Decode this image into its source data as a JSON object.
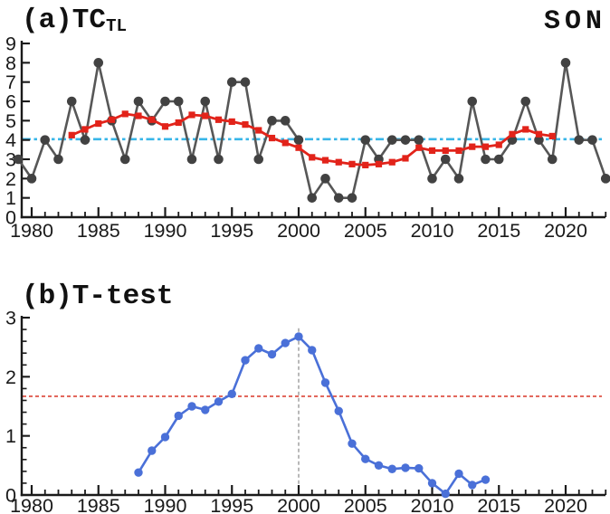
{
  "figure": {
    "panel_a": {
      "title_prefix": "(a)TC",
      "title_subscript": "TL",
      "season_label": "SON"
    },
    "panel_b": {
      "title": "(b)T-test"
    }
  },
  "chart_data": [
    {
      "panel": "a",
      "type": "line",
      "title": "(a)TC_TL (tropical cyclone count, SON)",
      "corner_label": "SON",
      "xlim": [
        1979,
        2023.7
      ],
      "ylim": [
        0,
        9
      ],
      "grid": false,
      "legend": "none",
      "x_tick_labels": [
        "1980",
        "1985",
        "1990",
        "1995",
        "2000",
        "2005",
        "2010",
        "2015",
        "2020"
      ],
      "x_minor_ticks": {
        "start": 1980,
        "end": 2023,
        "step": 1
      },
      "y_tick_labels": [
        "0",
        "1",
        "2",
        "3",
        "4",
        "5",
        "6",
        "7",
        "8",
        "9"
      ],
      "series": [
        {
          "name": "annual-tc-count",
          "color": "#424242",
          "line_color": "#575757",
          "marker": "circle",
          "marker_size": 5.3,
          "line_width": 2.6,
          "x_start": 1979,
          "values": [
            3,
            2,
            4,
            3,
            6,
            4,
            8,
            5,
            3,
            6,
            5,
            6,
            6,
            3,
            6,
            3,
            7,
            7,
            3,
            5,
            5,
            4,
            1,
            2,
            1,
            1,
            4,
            3,
            4,
            4,
            4,
            2,
            3,
            2,
            6,
            3,
            3,
            4,
            6,
            4,
            3,
            8,
            4,
            4,
            2
          ]
        },
        {
          "name": "smoothed-running-mean",
          "color": "#e2231a",
          "line_color": "#e2231a",
          "marker": "square",
          "marker_size": 3.6,
          "line_width": 2.8,
          "x_start": 1983,
          "values": [
            4.25,
            4.55,
            4.85,
            5.05,
            5.35,
            5.25,
            5.05,
            4.7,
            4.9,
            5.3,
            5.25,
            5.05,
            4.95,
            4.8,
            4.5,
            4.1,
            3.85,
            3.6,
            3.1,
            2.95,
            2.85,
            2.75,
            2.7,
            2.75,
            2.85,
            3.05,
            3.6,
            3.45,
            3.45,
            3.45,
            3.65,
            3.65,
            3.75,
            4.3,
            4.55,
            4.3,
            4.2
          ]
        }
      ],
      "reference_lines": [
        {
          "name": "climatological-mean",
          "axis": "y",
          "value": 4.04,
          "color": "#38b6e8",
          "style": "dash-dot",
          "width": 2.6
        }
      ]
    },
    {
      "panel": "b",
      "type": "line",
      "title": "(b)T-test (moving t-statistic)",
      "xlim": [
        1979,
        2023.7
      ],
      "ylim": [
        0,
        3
      ],
      "grid": false,
      "legend": "none",
      "x_tick_labels": [
        "1980",
        "1985",
        "1990",
        "1995",
        "2000",
        "2005",
        "2010",
        "2015",
        "2020"
      ],
      "x_minor_ticks": {
        "start": 1980,
        "end": 2023,
        "step": 1
      },
      "y_tick_labels": [
        "0",
        "1",
        "2",
        "3"
      ],
      "y_minor_step": 0.2,
      "series": [
        {
          "name": "t-statistic",
          "color": "#4a70d8",
          "line_color": "#4a70d8",
          "marker": "circle",
          "marker_size": 4.7,
          "line_width": 2.6,
          "x_start": 1988,
          "values": [
            0.38,
            0.75,
            0.98,
            1.34,
            1.5,
            1.44,
            1.58,
            1.71,
            2.28,
            2.48,
            2.38,
            2.57,
            2.68,
            2.45,
            1.9,
            1.42,
            0.87,
            0.61,
            0.5,
            0.44,
            0.46,
            0.45,
            0.2,
            0.02,
            0.36,
            0.17,
            0.26
          ]
        }
      ],
      "reference_lines": [
        {
          "name": "significance-threshold",
          "axis": "y",
          "value": 1.67,
          "color": "#dc4437",
          "style": "dashed",
          "width": 1.6
        },
        {
          "name": "change-point-2000",
          "axis": "x",
          "value": 2000,
          "color": "#9b9b9b",
          "style": "dashed",
          "width": 1.4,
          "y_span": [
            0,
            2.82
          ]
        }
      ]
    }
  ]
}
